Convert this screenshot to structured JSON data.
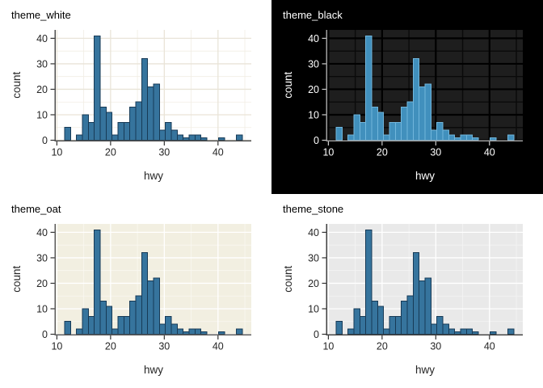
{
  "chart_data": {
    "type": "bar",
    "subtype": "histogram",
    "xlabel": "hwy",
    "ylabel": "count",
    "x_ticks": [
      10,
      20,
      30,
      40
    ],
    "y_ticks": [
      0,
      10,
      20,
      30,
      40
    ],
    "x_minor": [
      15,
      25,
      35,
      45
    ],
    "y_minor": [
      5,
      15,
      25,
      35
    ],
    "xlim": [
      9.79,
      46.2
    ],
    "ylim": [
      0,
      43.3
    ],
    "grid": true,
    "bins": {
      "start": 11.45,
      "width": 1.1034,
      "counts": [
        5,
        0,
        2,
        10,
        7,
        41,
        13,
        11,
        2,
        7,
        7,
        13,
        15,
        32,
        21,
        22,
        4,
        7,
        4,
        2,
        1,
        2,
        2,
        1,
        0,
        0,
        1,
        0,
        0,
        2
      ]
    },
    "total_observations": 234,
    "panels": [
      {
        "id": "theme_white",
        "title": "theme_white",
        "colors": {
          "outer": "#ffffff",
          "panel": "#ffffff",
          "grid_major": "#e9e4d8",
          "grid_minor": "#f1ede4",
          "axis": "#4f4f4f",
          "tick": "#333333",
          "text": "#262626",
          "title_text": "#000000",
          "bar_fill": "#36749d",
          "bar_stroke": "#173a56"
        }
      },
      {
        "id": "theme_black",
        "title": "theme_black",
        "colors": {
          "outer": "#000000",
          "panel": "#1e1e1e",
          "grid_major": "#000000",
          "grid_minor": "#0a0a0a",
          "axis": "#9e9e9e",
          "tick": "#cccccc",
          "text": "#ffffff",
          "title_text": "#ffffff",
          "bar_fill": "#4190bd",
          "bar_stroke": "#71b6dc"
        }
      },
      {
        "id": "theme_oat",
        "title": "theme_oat",
        "colors": {
          "outer": "#ffffff",
          "panel": "#f2efe1",
          "grid_major": "#ffffff",
          "grid_minor": "#faf8f1",
          "axis": "#5c5c5c",
          "tick": "#333333",
          "text": "#262626",
          "title_text": "#000000",
          "bar_fill": "#36749d",
          "bar_stroke": "#173a56"
        }
      },
      {
        "id": "theme_stone",
        "title": "theme_stone",
        "colors": {
          "outer": "#ffffff",
          "panel": "#e9e9e9",
          "grid_major": "#ffffff",
          "grid_minor": "#f4f4f4",
          "axis": "#424242",
          "tick": "#333333",
          "text": "#262626",
          "title_text": "#000000",
          "bar_fill": "#36749d",
          "bar_stroke": "#173a56"
        }
      }
    ]
  }
}
